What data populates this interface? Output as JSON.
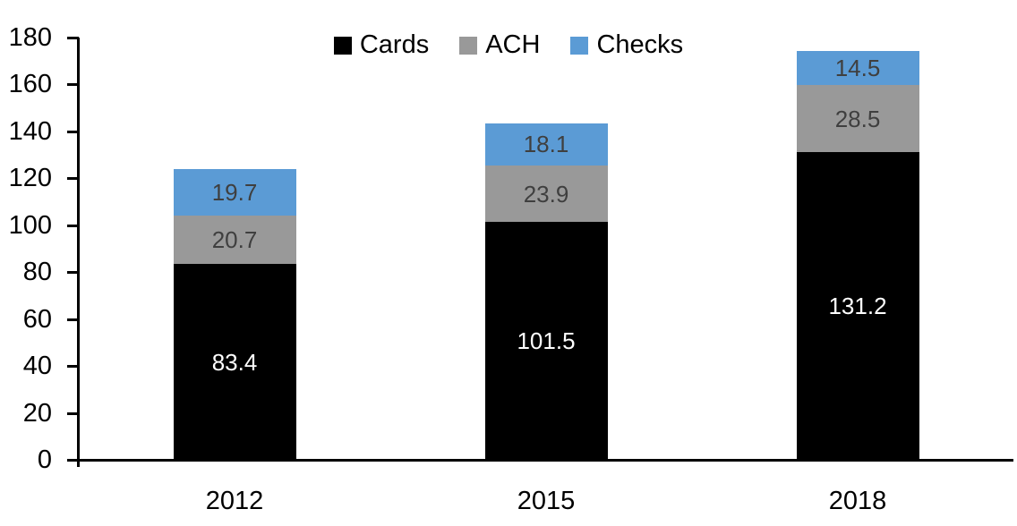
{
  "chart_data": {
    "type": "bar",
    "stacked": true,
    "title": "",
    "xlabel": "",
    "ylabel": "",
    "categories": [
      "2012",
      "2015",
      "2018"
    ],
    "series": [
      {
        "name": "Cards",
        "values": [
          83.4,
          101.5,
          131.2
        ],
        "color": "#000000",
        "label_color": "#FFFFFF"
      },
      {
        "name": "ACH",
        "values": [
          20.7,
          23.9,
          28.5
        ],
        "color": "#999999",
        "label_color": "#3F3F3F"
      },
      {
        "name": "Checks",
        "values": [
          19.7,
          18.1,
          14.5
        ],
        "color": "#5B9BD5",
        "label_color": "#3F3F3F"
      }
    ],
    "ylim": [
      0,
      180
    ],
    "ytick_step": 20,
    "ytick_labels": [
      "0",
      "20",
      "40",
      "60",
      "80",
      "100",
      "120",
      "140",
      "160",
      "180"
    ],
    "grid": false,
    "data_labels": true,
    "legend_position": "top-center",
    "axis_color": "#000000",
    "background_color": "#FFFFFF"
  }
}
